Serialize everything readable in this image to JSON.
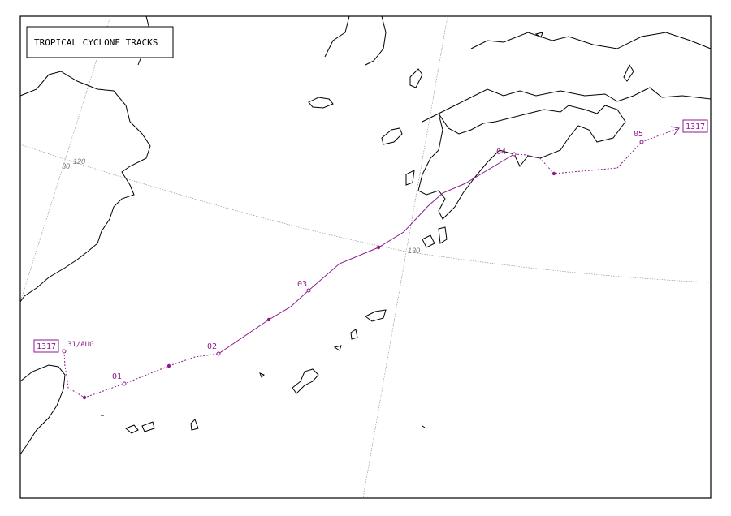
{
  "title": "TROPICAL CYCLONE TRACKS",
  "grid_labels": {
    "lon_120": "120",
    "lat_30": "30",
    "lon_130": "130"
  },
  "track": {
    "id": "1317",
    "start_label": "31/AUG",
    "day_labels": [
      "01",
      "02",
      "03",
      "04",
      "05"
    ],
    "color": "#8b1a8b"
  }
}
